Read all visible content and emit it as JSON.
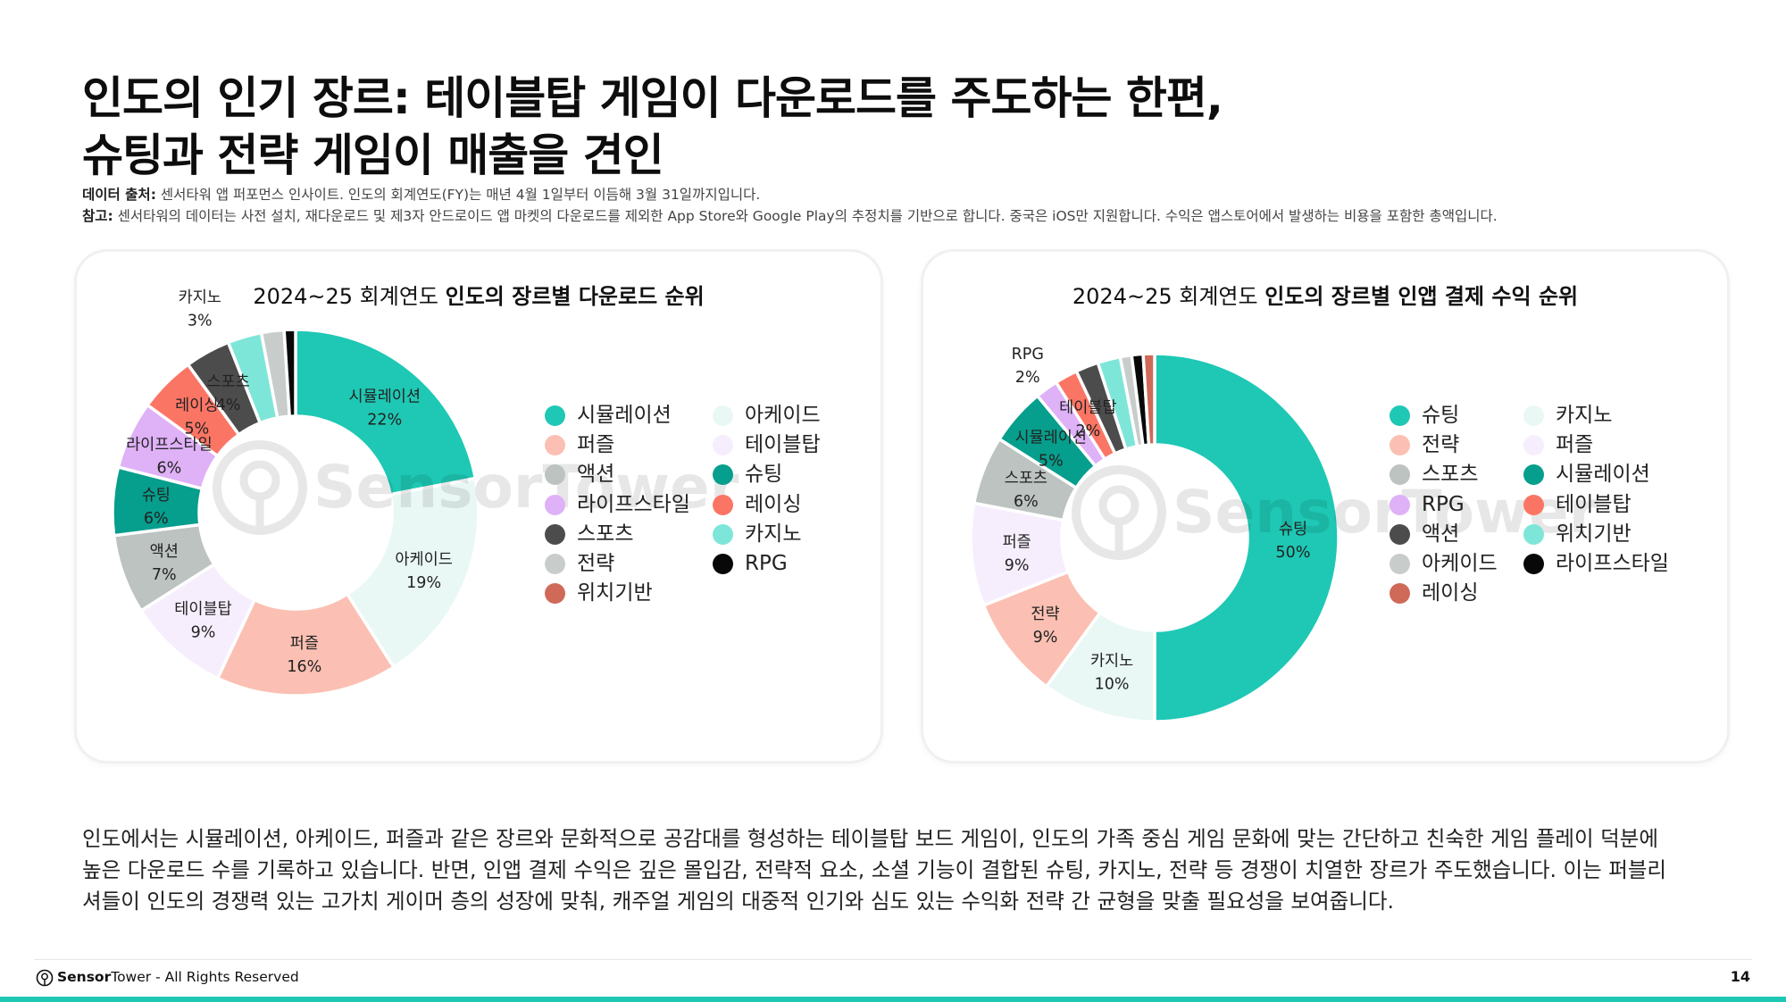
{
  "title": {
    "line1": "인도의 인기 장르: 테이블탑 게임이 다운로드를 주도하는 한편,",
    "line2": "슈팅과 전략 게임이 매출을 견인"
  },
  "notes": {
    "source_label": "데이터 출처:",
    "source_text": " 센서타워 앱 퍼포먼스 인사이트. 인도의 회계연도(FY)는 매년 4월 1일부터 이듬해 3월 31일까지입니다.",
    "note_label": "참고:",
    "note_text": " 센서타워의 데이터는 사전 설치, 재다운로드 및 제3자 안드로이드 앱 마켓의 다운로드를 제외한 App Store와 Google Play의 추정치를 기반으로 합니다. 중국은 iOS만 지원합니다.  수익은 앱스토어에서 발생하는 비용을 포함한 총액입니다."
  },
  "watermark": "SensorTower",
  "chart_data": [
    {
      "type": "pie",
      "title_prefix": "2024~25 회계연도 ",
      "title_bold": "인도의 장르별 다운로드 순위",
      "categories": [
        "시뮬레이션",
        "아케이드",
        "퍼즐",
        "테이블탑",
        "액션",
        "슈팅",
        "라이프스타일",
        "레이싱",
        "스포츠",
        "카지노",
        "전략",
        "RPG"
      ],
      "values": [
        22,
        19,
        16,
        9,
        7,
        6,
        6,
        5,
        4,
        3,
        2,
        1
      ],
      "colors": [
        "#1ec8b4",
        "#e9f8f5",
        "#fbc0b3",
        "#f6eefd",
        "#bcc3c1",
        "#069e8c",
        "#dfb1f7",
        "#fb7565",
        "#4c4c4c",
        "#7ee6d8",
        "#c8cdcc",
        "#080808"
      ],
      "point_labels": [
        "22%",
        "19%",
        "16%",
        "9%",
        "7%",
        "6%",
        "6%",
        "5%",
        "4%",
        "3%",
        "",
        ""
      ],
      "label_on_wedge": [
        true,
        true,
        true,
        true,
        true,
        true,
        true,
        true,
        true,
        false,
        false,
        false
      ],
      "legend": {
        "col1": [
          "시뮬레이션",
          "퍼즐",
          "액션",
          "라이프스타일",
          "스포츠",
          "전략",
          "위치기반"
        ],
        "col1_colors": [
          "#1ec8b4",
          "#fbc0b3",
          "#bcc3c1",
          "#dfb1f7",
          "#4c4c4c",
          "#c8cdcc",
          "#cf6a58"
        ],
        "col2": [
          "아케이드",
          "테이블탑",
          "슈팅",
          "레이싱",
          "카지노",
          "RPG"
        ],
        "col2_colors": [
          "#e9f8f5",
          "#f6eefd",
          "#069e8c",
          "#fb7565",
          "#7ee6d8",
          "#080808"
        ]
      }
    },
    {
      "type": "pie",
      "title_prefix": "2024~25 회계연도 ",
      "title_bold": "인도의 장르별 인앱 결제 수익 순위",
      "categories": [
        "슈팅",
        "카지노",
        "전략",
        "퍼즐",
        "스포츠",
        "시뮬레이션",
        "RPG",
        "테이블탑",
        "액션",
        "위치기반",
        "아케이드",
        "라이프스타일",
        "레이싱"
      ],
      "values": [
        50,
        10,
        9,
        9,
        6,
        5,
        2,
        2,
        2,
        2,
        1,
        1,
        1
      ],
      "colors": [
        "#1ec8b4",
        "#e9f8f5",
        "#fbc0b3",
        "#f6eefd",
        "#bcc3c1",
        "#069e8c",
        "#dfb1f7",
        "#fb7565",
        "#4c4c4c",
        "#7ee6d8",
        "#c8cdcc",
        "#080808",
        "#cf6a58"
      ],
      "point_labels": [
        "50%",
        "10%",
        "9%",
        "9%",
        "6%",
        "5%",
        "2%",
        "2%",
        "",
        "",
        "",
        "",
        ""
      ],
      "label_on_wedge": [
        true,
        true,
        true,
        true,
        true,
        true,
        false,
        true,
        false,
        false,
        false,
        false,
        false
      ],
      "legend": {
        "col1": [
          "슈팅",
          "전략",
          "스포츠",
          "RPG",
          "액션",
          "아케이드",
          "레이싱"
        ],
        "col1_colors": [
          "#1ec8b4",
          "#fbc0b3",
          "#bcc3c1",
          "#dfb1f7",
          "#4c4c4c",
          "#c8cdcc",
          "#cf6a58"
        ],
        "col2": [
          "카지노",
          "퍼즐",
          "시뮬레이션",
          "테이블탑",
          "위치기반",
          "라이프스타일"
        ],
        "col2_colors": [
          "#e9f8f5",
          "#f6eefd",
          "#069e8c",
          "#fb7565",
          "#7ee6d8",
          "#080808"
        ]
      }
    }
  ],
  "body": {
    "line1": "인도에서는 시뮬레이션, 아케이드, 퍼즐과 같은 장르와 문화적으로 공감대를 형성하는 테이블탑 보드 게임이, 인도의 가족 중심 게임 문화에 맞는 간단하고 친숙한 게임 플레이 덕분에",
    "line2": "높은 다운로드 수를 기록하고 있습니다. 반면, 인앱 결제 수익은 깊은 몰입감, 전략적 요소, 소셜 기능이 결합된 슈팅, 카지노, 전략 등 경쟁이 치열한 장르가 주도했습니다. 이는 퍼블리",
    "line3": "셔들이 인도의 경쟁력 있는 고가치 게이머 층의 성장에 맞춰, 캐주얼 게임의 대중적 인기와 심도 있는 수익화 전략 간 균형을 맞출 필요성을 보여줍니다."
  },
  "footer": {
    "brand_sensor": "Sensor",
    "brand_tower": "Tower",
    "rights": " - All Rights Reserved",
    "page_number": "14"
  }
}
